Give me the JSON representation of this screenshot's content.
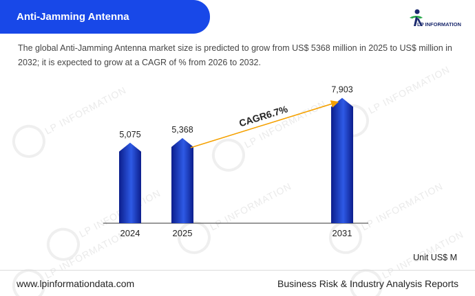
{
  "header": {
    "title": "Anti-Jamming Antenna"
  },
  "logo": {
    "text": "LP INFORMATION"
  },
  "description": "The global Anti-Jamming Antenna market size is predicted to grow from US$ 5368 million in 2025 to US$ million in 2032; it is expected to grow at a CAGR of % from 2026 to 2032.",
  "watermark_text": "LP INFORMATION",
  "unit_label": "Unit US$ M",
  "footer": {
    "website": "www.lpinformationdata.com",
    "tagline": "Business Risk & Industry Analysis Reports"
  },
  "colors": {
    "header_bg": "#1848e8",
    "bar_dark": "#0c1e8c",
    "bar_light": "#2e5ae6",
    "arrow": "#f5a100"
  },
  "chart_data": {
    "type": "bar",
    "categories": [
      "2024",
      "2025",
      "2031"
    ],
    "values": [
      5075,
      5368,
      7903
    ],
    "value_labels": [
      "5,075",
      "5,368",
      "7,903"
    ],
    "annotation": {
      "text": "CAGR6.7%",
      "from": "2025",
      "to": "2031"
    },
    "xlabel": "",
    "ylabel": ""
  }
}
